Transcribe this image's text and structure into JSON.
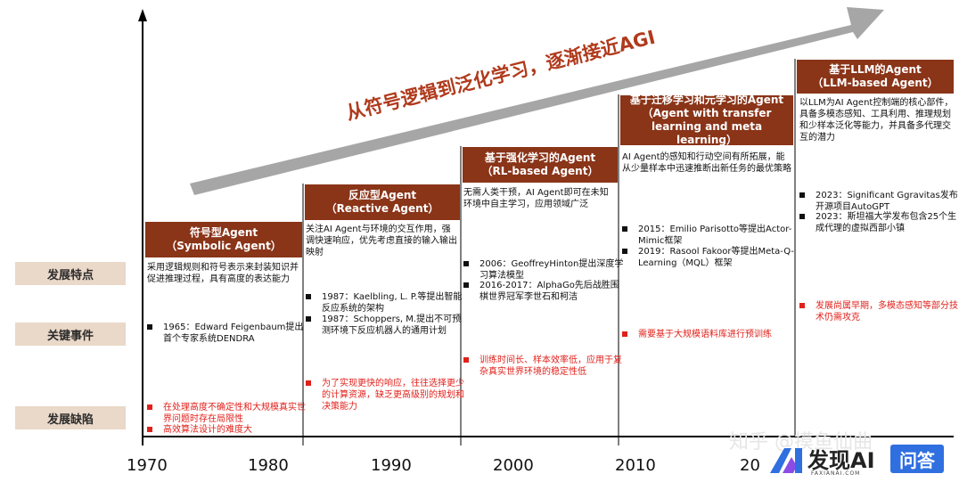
{
  "arrow_label": "从符号逻辑到泛化学习，逐渐接近AGI",
  "row_labels": {
    "features": "发展特点",
    "events": "关键事件",
    "defects": "发展缺陷"
  },
  "years": [
    "1970",
    "1980",
    "1990",
    "2000",
    "2010",
    "20"
  ],
  "eras": [
    {
      "title": "符号型Agent",
      "subtitle": "（Symbolic Agent）",
      "feature": "采用逻辑规则和符号表示来封装知识并促进推理过程，具有高度的表达能力",
      "events": [
        "1965：Edward Feigenbaum提出首个专家系统DENDRA"
      ],
      "defects": [
        "在处理高度不确定性和大规模真实世界问题时存在局限性",
        "高效算法设计的难度大"
      ]
    },
    {
      "title": "反应型Agent",
      "subtitle": "（Reactive Agent）",
      "feature": "关注AI Agent与环境的交互作用，强调快速响应，优先考虑直接的输入输出映射",
      "events": [
        "1987：Kaelbling, L. P.等提出智能反应系统的架构",
        "1987：Schoppers, M.提出不可预测环境下反应机器人的通用计划"
      ],
      "defects": [
        "为了实现更快的响应，往往选择更少的计算资源，缺乏更高级别的规划和决策能力"
      ]
    },
    {
      "title": "基于强化学习的Agent",
      "subtitle": "（RL-based Agent）",
      "feature": "无需人类干预，AI Agent即可在未知环境中自主学习，应用领域广泛",
      "events": [
        "2006：GeoffreyHinton提出深度学习算法模型",
        "2016-2017：AlphaGo先后战胜围棋世界冠军李世石和柯洁"
      ],
      "defects": [
        "训练时间长、样本效率低，应用于复杂真实世界环境的稳定性低"
      ]
    },
    {
      "title": "基于迁移学习和元学习的Agent",
      "subtitle": "（Agent with transfer learning and meta learning）",
      "feature": "AI Agent的感知和行动空间有所拓展，能从少量样本中迅速推断出新任务的最优策略",
      "events": [
        "2015：Emilio Parisotto等提出Actor-Mimic框架",
        "2019：Rasool Fakoor等提出Meta-Q-Learning（MQL）框架"
      ],
      "defects": [
        "需要基于大规模语料库进行预训练"
      ]
    },
    {
      "title": "基于LLM的Agent",
      "subtitle": "（LLM-based Agent）",
      "feature": "以LLM为AI Agent控制端的核心部件，具备多模态感知、工具利用、推理规划和少样本泛化等能力，并具备多代理交互的潜力",
      "events": [
        "2023：Significant Ggravitas发布开源项目AutoGPT",
        "2023：斯坦福大学发布包含25个生成代理的虚拟西部小镇"
      ],
      "defects": [
        "发展尚属早期，多模态感知等部分技术仍需攻克"
      ]
    }
  ],
  "watermark": {
    "faint_text": "知乎 @摸鱼仙曲",
    "brand": "发现AI",
    "sub": "FAXIANAI.COM",
    "button": "问答"
  },
  "colors": {
    "era_header": "#8a3418",
    "row_label_bg": "#ead8c8",
    "arrow": "#a9a9a9",
    "defect_text": "#e0211b",
    "arrow_text": "#b03a1c"
  }
}
